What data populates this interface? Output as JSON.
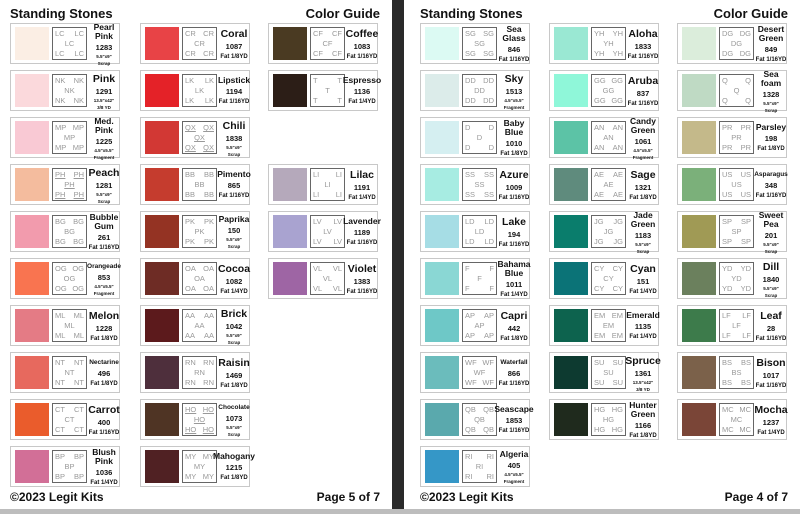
{
  "pages": [
    {
      "title": "Standing Stones",
      "guide": "Color Guide",
      "copyright": "©2023 Legit Kits",
      "page_label": "Page 5 of 7",
      "columns": [
        [
          {
            "name": "Pearl Pink",
            "code": "LC",
            "number": "1283",
            "size": [
              "5.5\"x9\"",
              "Scrap"
            ],
            "color": "#fbeee4"
          },
          {
            "name": "Pink",
            "code": "NK",
            "number": "1291",
            "size": [
              "13.5\"x42\"",
              "3/8 YD"
            ],
            "color": "#fbd9dc"
          },
          {
            "name": "Med. Pink",
            "code": "MP",
            "number": "1225",
            "size": [
              "4.5\"x5.5\"",
              "Fragment"
            ],
            "color": "#f9c9d4"
          },
          {
            "name": "Peach",
            "code": "PH",
            "underline": true,
            "number": "1281",
            "size": [
              "5.5\"x9\"",
              "Scrap"
            ],
            "color": "#f4bc9e"
          },
          {
            "name": "Bubble Gum",
            "code": "BG",
            "number": "261",
            "size": [
              "Fat 1/16YD"
            ],
            "color": "#f29bad"
          },
          {
            "name": "Orangeade",
            "code": "OG",
            "number": "853",
            "size": [
              "4.5\"x5.5\"",
              "Fragment"
            ],
            "color": "#f97450"
          },
          {
            "name": "Melon",
            "code": "ML",
            "number": "1228",
            "size": [
              "Fat 1/8YD"
            ],
            "color": "#e47b85"
          },
          {
            "name": "Nectarine",
            "code": "NT",
            "number": "496",
            "size": [
              "Fat 1/8YD"
            ],
            "color": "#e7695e"
          },
          {
            "name": "Carrot",
            "code": "CT",
            "number": "400",
            "size": [
              "Fat 1/16YD"
            ],
            "color": "#ea5c2c"
          },
          {
            "name": "Blush Pink",
            "code": "BP",
            "number": "1036",
            "size": [
              "Fat 1/4YD"
            ],
            "color": "#d26f97"
          }
        ],
        [
          {
            "name": "Coral",
            "code": "CR",
            "number": "1087",
            "size": [
              "Fat 1/8YD"
            ],
            "color": "#e84346"
          },
          {
            "name": "Lipstick",
            "code": "LK",
            "number": "1194",
            "size": [
              "Fat 1/16YD"
            ],
            "color": "#e42228"
          },
          {
            "name": "Chili",
            "code": "QX",
            "underline": true,
            "number": "1838",
            "size": [
              "5.5\"x9\"",
              "Scrap"
            ],
            "color": "#d23834"
          },
          {
            "name": "Pimento",
            "code": "BB",
            "number": "865",
            "size": [
              "Fat 1/16YD"
            ],
            "color": "#c53c2e"
          },
          {
            "name": "Paprika",
            "code": "PK",
            "number": "150",
            "size": [
              "5.5\"x9\"",
              "Scrap"
            ],
            "color": "#943323"
          },
          {
            "name": "Cocoa",
            "code": "OA",
            "number": "1082",
            "size": [
              "Fat 1/4YD"
            ],
            "color": "#6e2c25"
          },
          {
            "name": "Brick",
            "code": "AA",
            "number": "1042",
            "size": [
              "5.5\"x9\"",
              "Scrap"
            ],
            "color": "#5c1a1c"
          },
          {
            "name": "Raisin",
            "code": "RN",
            "number": "1469",
            "size": [
              "Fat 1/8YD"
            ],
            "color": "#4e2f3c"
          },
          {
            "name": "Chocolate",
            "code": "HO",
            "underline": true,
            "number": "1073",
            "size": [
              "5.5\"x9\"",
              "Scrap"
            ],
            "color": "#4f3424"
          },
          {
            "name": "Mahogany",
            "code": "MY",
            "number": "1215",
            "size": [
              "Fat 1/8YD"
            ],
            "color": "#502123"
          }
        ],
        [
          {
            "name": "Coffee",
            "code": "CF",
            "number": "1083",
            "size": [
              "Fat 1/16YD"
            ],
            "color": "#4a3a22"
          },
          {
            "name": "Espresso",
            "code": "T",
            "number": "1136",
            "size": [
              "Fat 1/4YD"
            ],
            "color": "#2c1e17"
          },
          null,
          {
            "name": "Lilac",
            "code": "LI",
            "number": "1191",
            "size": [
              "Fat 1/4YD"
            ],
            "color": "#b5a9bb"
          },
          {
            "name": "Lavender",
            "code": "LV",
            "number": "1189",
            "size": [
              "Fat 1/16YD"
            ],
            "color": "#a9a3d0"
          },
          {
            "name": "Violet",
            "code": "VL",
            "number": "1383",
            "size": [
              "Fat 1/16YD"
            ],
            "color": "#9e65a4"
          }
        ]
      ]
    },
    {
      "title": "Standing Stones",
      "guide": "Color Guide",
      "copyright": "©2023 Legit Kits",
      "page_label": "Page 4 of 7",
      "columns": [
        [
          {
            "name": "Sea Glass",
            "code": "SG",
            "number": "846",
            "size": [
              "Fat 1/16YD"
            ],
            "color": "#dcfaf3"
          },
          {
            "name": "Sky",
            "code": "DD",
            "number": "1513",
            "size": [
              "4.5\"x5.5\"",
              "Fragment"
            ],
            "color": "#dcecea"
          },
          {
            "name": "Baby Blue",
            "code": "D",
            "number": "1010",
            "size": [
              "Fat 1/8YD"
            ],
            "color": "#d5eff1"
          },
          {
            "name": "Azure",
            "code": "SS",
            "number": "1009",
            "size": [
              "Fat 1/16YD"
            ],
            "color": "#a7ece2"
          },
          {
            "name": "Lake",
            "code": "LD",
            "number": "194",
            "size": [
              "Fat 1/16YD"
            ],
            "color": "#a6dde5"
          },
          {
            "name": "Bahama Blue",
            "code": "F",
            "number": "1011",
            "size": [
              "Fat 1/4YD"
            ],
            "color": "#8ad7d4"
          },
          {
            "name": "Capri",
            "code": "AP",
            "number": "442",
            "size": [
              "Fat 1/8YD"
            ],
            "color": "#6ec8c7"
          },
          {
            "name": "Waterfall",
            "code": "WF",
            "number": "866",
            "size": [
              "Fat 1/16YD"
            ],
            "color": "#6bbcbc"
          },
          {
            "name": "Seascape",
            "code": "QB",
            "number": "1853",
            "size": [
              "Fat 1/16YD"
            ],
            "color": "#5aa9ad"
          },
          {
            "name": "Algeria",
            "code": "RI",
            "number": "405",
            "size": [
              "4.5\"x5.5\"",
              "Fragment"
            ],
            "color": "#3597c7"
          }
        ],
        [
          {
            "name": "Aloha",
            "code": "YH",
            "number": "1833",
            "size": [
              "Fat 1/16YD"
            ],
            "color": "#9ae8d3"
          },
          {
            "name": "Aruba",
            "code": "GG",
            "number": "837",
            "size": [
              "Fat 1/16YD"
            ],
            "color": "#8ff7d9"
          },
          {
            "name": "Candy Green",
            "code": "AN",
            "number": "1061",
            "size": [
              "4.5\"x5.5\"",
              "Fragment"
            ],
            "color": "#5cc3a6"
          },
          {
            "name": "Sage",
            "code": "AE",
            "number": "1321",
            "size": [
              "Fat 1/8YD"
            ],
            "color": "#5f8b7d"
          },
          {
            "name": "Jade Green",
            "code": "JG",
            "number": "1183",
            "size": [
              "5.5\"x9\"",
              "Scrap"
            ],
            "color": "#0a7d6c"
          },
          {
            "name": "Cyan",
            "code": "CY",
            "number": "151",
            "size": [
              "Fat 1/4YD"
            ],
            "color": "#0b7377"
          },
          {
            "name": "Emerald",
            "code": "EM",
            "number": "1135",
            "size": [
              "Fat 1/4YD"
            ],
            "color": "#0d634e"
          },
          {
            "name": "Spruce",
            "code": "SU",
            "number": "1361",
            "size": [
              "13.5\"x42\"",
              "3/8 YD"
            ],
            "color": "#0d3a30"
          },
          {
            "name": "Hunter Green",
            "code": "HG",
            "number": "1166",
            "size": [
              "Fat 1/8YD"
            ],
            "color": "#1f2a1d"
          }
        ],
        [
          {
            "name": "Desert Green",
            "code": "DG",
            "number": "849",
            "size": [
              "Fat 1/16YD"
            ],
            "color": "#dbeddb"
          },
          {
            "name": "Sea foam",
            "code": "Q",
            "number": "1328",
            "size": [
              "5.5\"x9\"",
              "Scrap"
            ],
            "color": "#bfdac4"
          },
          {
            "name": "Parsley",
            "code": "PR",
            "number": "198",
            "size": [
              "Fat 1/8YD"
            ],
            "color": "#c4b98a"
          },
          {
            "name": "Asparagus",
            "code": "US",
            "number": "348",
            "size": [
              "Fat 1/16YD"
            ],
            "color": "#7bb07a"
          },
          {
            "name": "Sweet Pea",
            "code": "SP",
            "number": "201",
            "size": [
              "5.5\"x9\"",
              "Scrap"
            ],
            "color": "#a09a55"
          },
          {
            "name": "Dill",
            "code": "YD",
            "number": "1840",
            "size": [
              "5.5\"x9\"",
              "Scrap"
            ],
            "color": "#6b805d"
          },
          {
            "name": "Leaf",
            "code": "LF",
            "number": "28",
            "size": [
              "Fat 1/16YD"
            ],
            "color": "#3d7b4b"
          },
          {
            "name": "Bison",
            "code": "BS",
            "number": "1017",
            "size": [
              "Fat 1/16YD"
            ],
            "color": "#7b614a"
          },
          {
            "name": "Mocha",
            "code": "MC",
            "number": "1237",
            "size": [
              "Fat 1/4YD"
            ],
            "color": "#7a4537"
          }
        ]
      ]
    }
  ]
}
